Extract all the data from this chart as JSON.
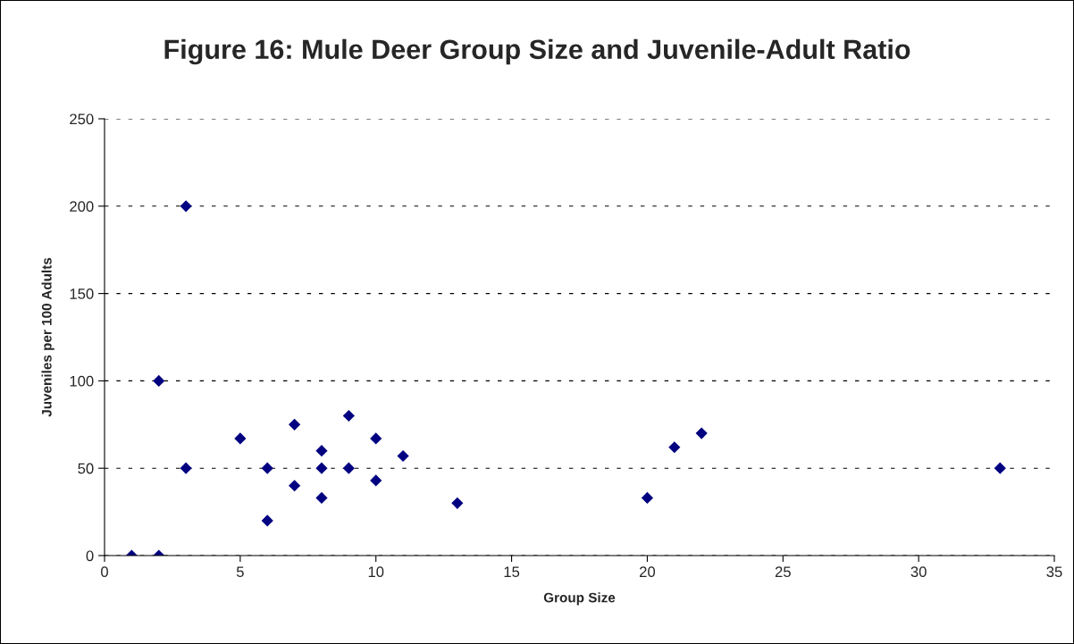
{
  "chart_data": {
    "type": "scatter",
    "title": "Figure 16: Mule Deer Group Size and Juvenile-Adult Ratio",
    "xlabel": "Group Size",
    "ylabel": "Juveniles per 100 Adults",
    "series": [
      {
        "color": "#000080",
        "x": [
          1,
          2,
          2,
          3,
          3,
          5,
          6,
          6,
          7,
          7,
          8,
          8,
          8,
          9,
          9,
          10,
          10,
          11,
          13,
          20,
          21,
          22,
          33
        ],
        "values": [
          0,
          0,
          100,
          200,
          50,
          67,
          50,
          20,
          75,
          40,
          60,
          50,
          33,
          80,
          50,
          67,
          43,
          57,
          30,
          33,
          62,
          70,
          50
        ]
      }
    ],
    "xlim": [
      0,
      35
    ],
    "xticks": [
      0,
      5,
      10,
      15,
      20,
      25,
      30,
      35
    ],
    "ylim": [
      0,
      250
    ],
    "yticks": [
      0,
      50,
      100,
      150,
      200,
      250
    ],
    "grid": "y",
    "marker": "diamond",
    "legend": false
  }
}
